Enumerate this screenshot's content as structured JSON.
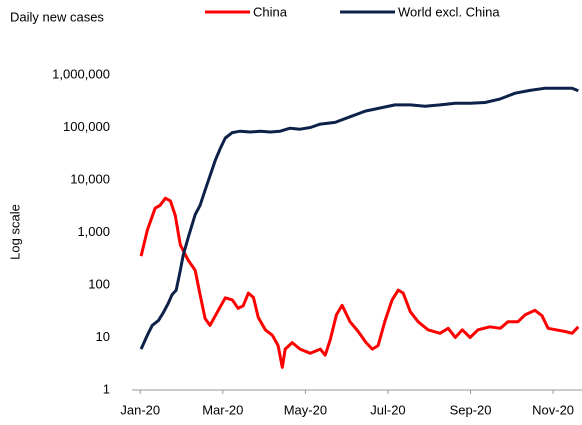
{
  "chart_data": {
    "type": "line",
    "title": "Daily new cases",
    "y_label": "Log scale",
    "log_y": true,
    "xlim": [
      -0.2,
      10.7
    ],
    "xticks": [
      {
        "value": 0,
        "label": "Jan-20"
      },
      {
        "value": 2,
        "label": "Mar-20"
      },
      {
        "value": 4,
        "label": "May-20"
      },
      {
        "value": 6,
        "label": "Jul-20"
      },
      {
        "value": 8,
        "label": "Sep-20"
      },
      {
        "value": 10,
        "label": "Nov-20"
      }
    ],
    "ylim": [
      1,
      1000000
    ],
    "yticks": [
      1,
      10,
      100,
      {
        "value": 1000,
        "label": "1,000"
      },
      {
        "value": 10000,
        "label": "10,000"
      },
      {
        "value": 100000,
        "label": "100,000"
      },
      {
        "value": 1000000,
        "label": "1,000,000"
      }
    ],
    "series": [
      {
        "name": "China",
        "color": "#ff0000",
        "x": [
          0.02,
          0.17,
          0.36,
          0.48,
          0.61,
          0.73,
          0.85,
          0.97,
          1.16,
          1.33,
          1.45,
          1.57,
          1.69,
          1.89,
          2.06,
          2.23,
          2.37,
          2.49,
          2.62,
          2.74,
          2.86,
          3.03,
          3.2,
          3.34,
          3.44,
          3.51,
          3.68,
          3.87,
          4.12,
          4.36,
          4.48,
          4.6,
          4.75,
          4.89,
          5.08,
          5.28,
          5.47,
          5.62,
          5.76,
          5.93,
          6.1,
          6.25,
          6.37,
          6.54,
          6.73,
          6.97,
          7.26,
          7.46,
          7.63,
          7.8,
          7.99,
          8.18,
          8.47,
          8.72,
          8.91,
          9.15,
          9.32,
          9.56,
          9.73,
          9.88,
          10.07,
          10.29,
          10.46,
          10.61
        ],
        "values": [
          355,
          1100,
          2900,
          3300,
          4500,
          4000,
          2100,
          580,
          300,
          190,
          65,
          23,
          17,
          33,
          57,
          52,
          36,
          40,
          70,
          58,
          24,
          14,
          11,
          7,
          2.7,
          6,
          8,
          6,
          5,
          6,
          4.6,
          9,
          27,
          41,
          20,
          13,
          8,
          6,
          7,
          21,
          52,
          80,
          70,
          31,
          20,
          14,
          12,
          15,
          10,
          14,
          10,
          14,
          16,
          15,
          20,
          20,
          27,
          33,
          26,
          15,
          14,
          13,
          12,
          16
        ]
      },
      {
        "name": "World excl. China",
        "color": "#0d2149",
        "x": [
          0.02,
          0.17,
          0.29,
          0.44,
          0.56,
          0.68,
          0.77,
          0.87,
          0.97,
          1.04,
          1.16,
          1.33,
          1.45,
          1.57,
          1.69,
          1.82,
          1.94,
          2.06,
          2.23,
          2.42,
          2.66,
          2.91,
          3.15,
          3.39,
          3.63,
          3.87,
          4.12,
          4.36,
          4.72,
          5.08,
          5.45,
          5.81,
          6.17,
          6.54,
          6.9,
          7.26,
          7.63,
          7.99,
          8.35,
          8.72,
          9.08,
          9.44,
          9.81,
          10.17,
          10.46,
          10.61
        ],
        "values": [
          6,
          11,
          17,
          21,
          30,
          45,
          65,
          80,
          190,
          370,
          790,
          2200,
          3300,
          6400,
          12000,
          24000,
          40000,
          63000,
          80000,
          85000,
          82000,
          85000,
          82000,
          85000,
          97000,
          93000,
          100000,
          116000,
          125000,
          160000,
          205000,
          235000,
          270000,
          270000,
          255000,
          270000,
          290000,
          290000,
          300000,
          350000,
          450000,
          510000,
          560000,
          560000,
          560000,
          500000
        ]
      }
    ]
  }
}
